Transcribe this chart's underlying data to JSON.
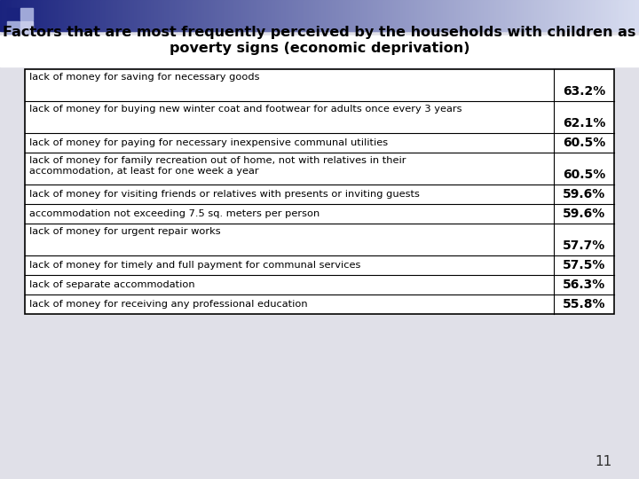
{
  "title_line1": "Factors that are most frequently perceived by the households with children as",
  "title_line2": "poverty signs (economic deprivation)",
  "rows": [
    {
      "label": "lack of money for saving for necessary goods",
      "value": "63.2%",
      "label_valign": "top",
      "value_valign": "bottom",
      "row_lines": 2
    },
    {
      "label": "lack of money for buying new winter coat and footwear for adults once every 3 years",
      "value": "62.1%",
      "label_valign": "top",
      "value_valign": "bottom",
      "row_lines": 2
    },
    {
      "label": "lack of money for paying for necessary inexpensive communal utilities",
      "value": "60.5%",
      "label_valign": "center",
      "value_valign": "center",
      "row_lines": 1
    },
    {
      "label": "lack of money for family recreation out of home, not with relatives in their\naccommodation, at least for one week a year",
      "value": "60.5%",
      "label_valign": "top",
      "value_valign": "bottom",
      "row_lines": 2
    },
    {
      "label": "lack of money for visiting friends or relatives with presents or inviting guests",
      "value": "59.6%",
      "label_valign": "center",
      "value_valign": "center",
      "row_lines": 1
    },
    {
      "label": "accommodation not exceeding 7.5 sq. meters per person",
      "value": "59.6%",
      "label_valign": "center",
      "value_valign": "center",
      "row_lines": 1
    },
    {
      "label": "lack of money for urgent repair works",
      "value": "57.7%",
      "label_valign": "top",
      "value_valign": "bottom",
      "row_lines": 2
    },
    {
      "label": "lack of money for timely and full payment for communal services",
      "value": "57.5%",
      "label_valign": "center",
      "value_valign": "center",
      "row_lines": 1
    },
    {
      "label": "lack of separate accommodation",
      "value": "56.3%",
      "label_valign": "center",
      "value_valign": "center",
      "row_lines": 1
    },
    {
      "label": "lack of money for receiving any professional education",
      "value": "55.8%",
      "label_valign": "center",
      "value_valign": "center",
      "row_lines": 1
    }
  ],
  "background_color": "#e8e8e8",
  "table_border_color": "#000000",
  "title_color": "#000000",
  "text_color": "#000000",
  "value_color": "#000000",
  "font_size_title": 11.5,
  "font_size_table": 8.2,
  "font_size_value": 10,
  "page_number": "11",
  "bar_left_color": "#1a237e",
  "bar_right_color": "#d0d8f0",
  "sq1_color": "#1a237e",
  "sq2_color": "#9fa8d8",
  "sq3_color": "#9fa8d8",
  "sq4_color": "#c5cae9"
}
